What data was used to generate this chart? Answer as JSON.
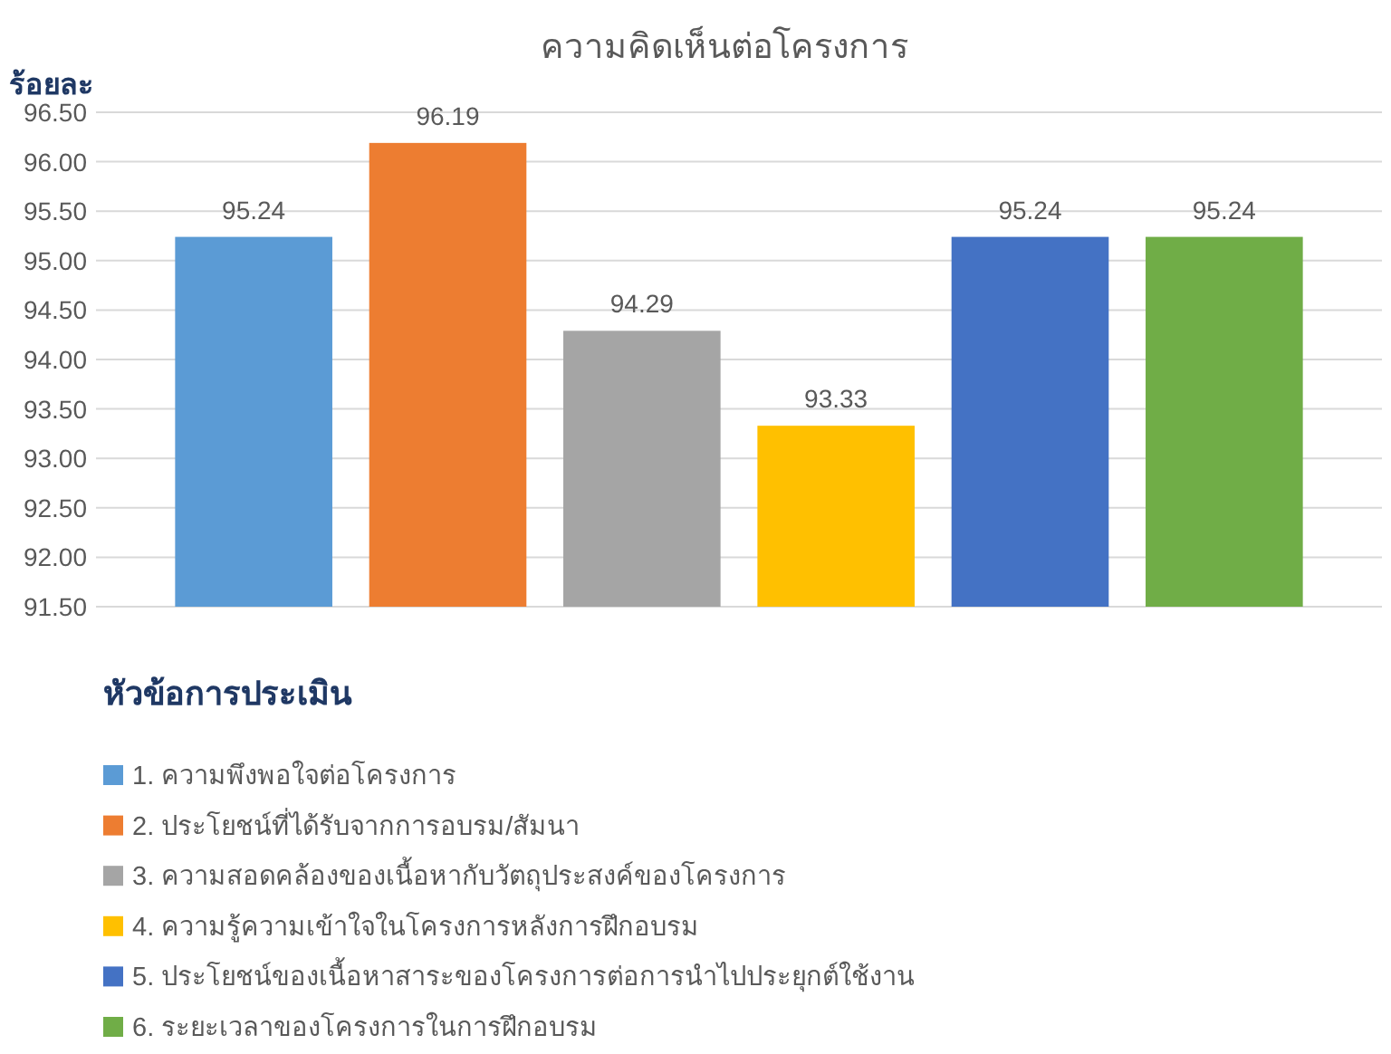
{
  "chart_data": {
    "type": "bar",
    "title": "ความคิดเห็นต่อโครงการ",
    "ylabel": "ร้อยละ",
    "legend_title": "หัวข้อการประเมิน",
    "categories": [
      null,
      null,
      null,
      null,
      null,
      null
    ],
    "series": [
      {
        "name": "1. ความพึงพอใจต่อโครงการ",
        "color": "#5b9bd5",
        "values": [
          95.24,
          null,
          null,
          null,
          null,
          null
        ]
      },
      {
        "name": "2. ประโยชน์ที่ได้รับจากการอบรม/สัมนา",
        "color": "#ed7d31",
        "values": [
          null,
          96.19,
          null,
          null,
          null,
          null
        ]
      },
      {
        "name": "3. ความสอดคล้องของเนื้อหากับวัตถุประสงค์ของโครงการ",
        "color": "#a5a5a5",
        "values": [
          null,
          null,
          94.29,
          null,
          null,
          null
        ]
      },
      {
        "name": "4. ความรู้ความเข้าใจในโครงการหลังการฝึกอบรม",
        "color": "#ffc000",
        "values": [
          null,
          null,
          null,
          93.33,
          null,
          null
        ]
      },
      {
        "name": "5. ประโยชน์ของเนื้อหาสาระของโครงการต่อการนำไปประยุกต์ใช้งาน",
        "color": "#4472c4",
        "values": [
          null,
          null,
          null,
          null,
          95.24,
          null
        ]
      },
      {
        "name": "6. ระยะเวลาของโครงการในการฝึกอบรม",
        "color": "#70ad47",
        "values": [
          null,
          null,
          null,
          null,
          null,
          95.24
        ]
      }
    ],
    "ylim": [
      91.5,
      96.5
    ],
    "yticks": [
      {
        "value": 91.5,
        "label": "91.50"
      },
      {
        "value": 92,
        "label": "92.00"
      },
      {
        "value": 92.5,
        "label": "92.50"
      },
      {
        "value": 93,
        "label": "93.00"
      },
      {
        "value": 93.5,
        "label": "93.50"
      },
      {
        "value": 94,
        "label": "94.00"
      },
      {
        "value": 94.5,
        "label": "94.50"
      },
      {
        "value": 95,
        "label": "95.00"
      },
      {
        "value": 95.5,
        "label": "95.50"
      },
      {
        "value": 96,
        "label": "96.00"
      },
      {
        "value": 96.5,
        "label": "96.50"
      }
    ],
    "grid": "y",
    "legend": "bottom",
    "data_labels": true
  }
}
